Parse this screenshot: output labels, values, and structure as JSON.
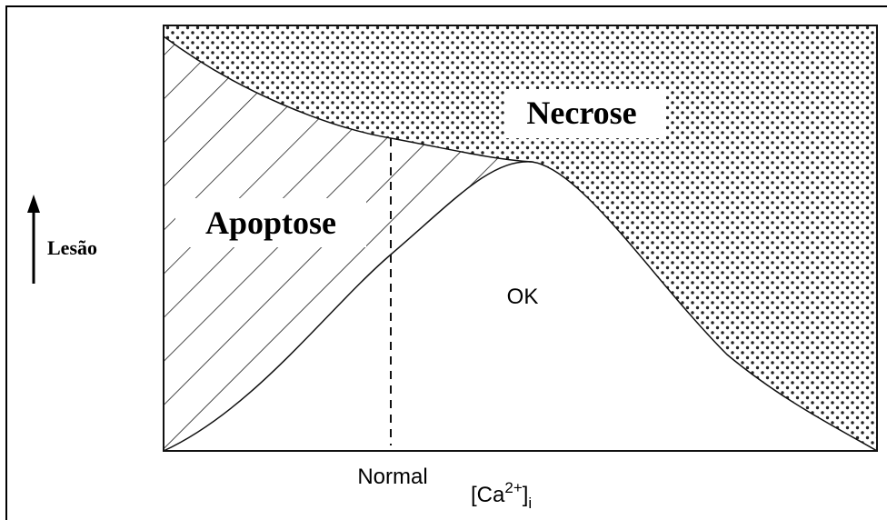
{
  "labels": {
    "necrose": "Necrose",
    "apoptose": "Apoptose",
    "ok": "OK",
    "y_axis": "Lesão",
    "normal": "Normal",
    "x_axis": {
      "main": "[Ca",
      "sup": "2+",
      "close": "]",
      "sub": "i"
    }
  }
}
